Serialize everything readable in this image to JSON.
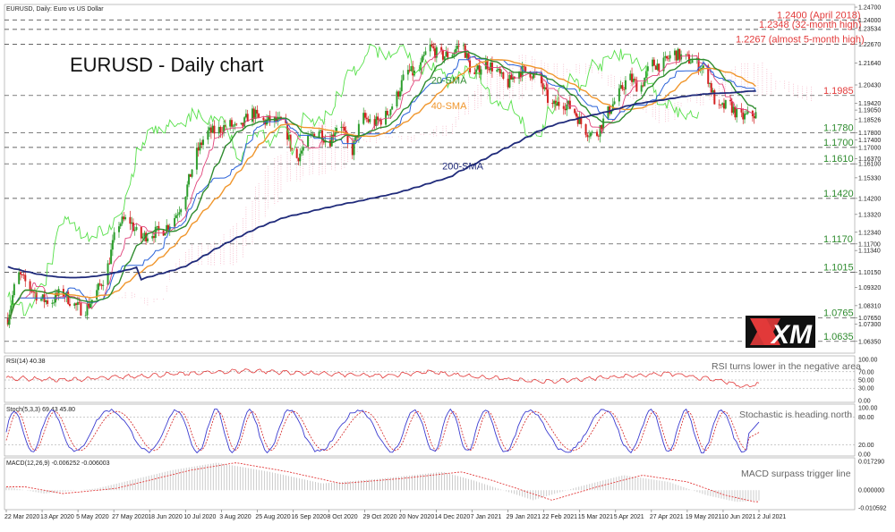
{
  "window_title": "EURUSD, Daily: Euro vs US Dollar",
  "chart_title": "EURUSD - Daily chart",
  "brand": "XM",
  "colors": {
    "up": "#2e9e2e",
    "down": "#d42222",
    "sma20": "#2f8c2f",
    "sma40": "#f0962c",
    "sma200": "#1f2a7a",
    "kijun": "#2a62d8",
    "tenkan": "#e0437a",
    "chikou": "#57e04a",
    "cloud": "#f08aa5",
    "level_green": "#2e8b2e",
    "level_red": "#e23a3a",
    "rsi": "#e23a3a",
    "stoch_main": "#3b3bd0",
    "stoch_signal": "#d42222",
    "macd_hist": "#bfbfbf",
    "macd_signal": "#e23a3a"
  },
  "chart_data": [
    {
      "type": "candlestick",
      "title": "EURUSD - Daily chart",
      "x_labels": [
        "22 Mar 2020",
        "13 Apr 2020",
        "5 May 2020",
        "27 May 2020",
        "18 Jun 2020",
        "10 Jul 2020",
        "3 Aug 2020",
        "25 Aug 2020",
        "16 Sep 2020",
        "8 Oct 2020",
        "29 Oct 2020",
        "20 Nov 2020",
        "14 Dec 2020",
        "7 Jan 2021",
        "29 Jan 2021",
        "22 Feb 2021",
        "15 Mar 2021",
        "5 Apr 2021",
        "27 Apr 2021",
        "19 May 2021",
        "10 Jun 2021",
        "2 Jul 2021"
      ],
      "y_ticks": [
        "1.24700",
        "1.24000",
        "1.23534",
        "1.22670",
        "1.21640",
        "1.20430",
        "1.19420",
        "1.19050",
        "1.18526",
        "1.17800",
        "1.17400",
        "1.17000",
        "1.16370",
        "1.16100",
        "1.15330",
        "1.14200",
        "1.13320",
        "1.12340",
        "1.11700",
        "1.11340",
        "1.10150",
        "1.09320",
        "1.08310",
        "1.07650",
        "1.07300",
        "1.06350"
      ],
      "ylim": [
        1.058,
        1.2475
      ],
      "levels": [
        {
          "value": 1.24,
          "label": "1.2400 (April 2018)",
          "color": "red"
        },
        {
          "value": 1.2348,
          "label": "1.2348 (32-month high)",
          "color": "red"
        },
        {
          "value": 1.2267,
          "label": "1.2267 (almost 5-month high)",
          "color": "red"
        },
        {
          "value": 1.1985,
          "label": "1.1985",
          "color": "red"
        },
        {
          "value": 1.178,
          "label": "1.1780",
          "color": "green"
        },
        {
          "value": 1.17,
          "label": "1.1700",
          "color": "green"
        },
        {
          "value": 1.161,
          "label": "1.1610",
          "color": "green"
        },
        {
          "value": 1.142,
          "label": "1.1420",
          "color": "green"
        },
        {
          "value": 1.117,
          "label": "1.1170",
          "color": "green"
        },
        {
          "value": 1.1015,
          "label": "1.1015",
          "color": "green"
        },
        {
          "value": 1.0765,
          "label": "1.0765",
          "color": "green"
        },
        {
          "value": 1.0635,
          "label": "1.0635",
          "color": "green"
        }
      ],
      "series_labels": [
        {
          "name": "20-SMA",
          "date": "2020-12-23",
          "value": 1.205
        },
        {
          "name": "40-SMA",
          "date": "2020-12-23",
          "value": 1.191
        },
        {
          "name": "200-SMA",
          "date": "2020-12-30",
          "value": 1.158
        }
      ],
      "close_series": {
        "description": "approximate daily closes, weekly anchor points",
        "points": [
          [
            "2020-03-22",
            1.072
          ],
          [
            "2020-03-29",
            1.101
          ],
          [
            "2020-04-05",
            1.094
          ],
          [
            "2020-04-12",
            1.087
          ],
          [
            "2020-04-19",
            1.085
          ],
          [
            "2020-04-26",
            1.091
          ],
          [
            "2020-05-03",
            1.084
          ],
          [
            "2020-05-10",
            1.08
          ],
          [
            "2020-05-17",
            1.089
          ],
          [
            "2020-05-24",
            1.101
          ],
          [
            "2020-05-31",
            1.128
          ],
          [
            "2020-06-07",
            1.131
          ],
          [
            "2020-06-14",
            1.12
          ],
          [
            "2020-06-21",
            1.123
          ],
          [
            "2020-06-28",
            1.124
          ],
          [
            "2020-07-05",
            1.13
          ],
          [
            "2020-07-12",
            1.142
          ],
          [
            "2020-07-19",
            1.165
          ],
          [
            "2020-07-26",
            1.178
          ],
          [
            "2020-08-02",
            1.179
          ],
          [
            "2020-08-09",
            1.183
          ],
          [
            "2020-08-16",
            1.179
          ],
          [
            "2020-08-23",
            1.19
          ],
          [
            "2020-08-30",
            1.184
          ],
          [
            "2020-09-06",
            1.185
          ],
          [
            "2020-09-13",
            1.183
          ],
          [
            "2020-09-20",
            1.163
          ],
          [
            "2020-09-27",
            1.172
          ],
          [
            "2020-10-04",
            1.181
          ],
          [
            "2020-10-11",
            1.172
          ],
          [
            "2020-10-18",
            1.186
          ],
          [
            "2020-10-25",
            1.165
          ],
          [
            "2020-11-01",
            1.187
          ],
          [
            "2020-11-08",
            1.183
          ],
          [
            "2020-11-15",
            1.186
          ],
          [
            "2020-11-22",
            1.196
          ],
          [
            "2020-11-29",
            1.212
          ],
          [
            "2020-12-06",
            1.21
          ],
          [
            "2020-12-13",
            1.226
          ],
          [
            "2020-12-20",
            1.22
          ],
          [
            "2020-12-27",
            1.221
          ],
          [
            "2021-01-03",
            1.228
          ],
          [
            "2021-01-10",
            1.208
          ],
          [
            "2021-01-17",
            1.217
          ],
          [
            "2021-01-24",
            1.213
          ],
          [
            "2021-01-31",
            1.204
          ],
          [
            "2021-02-07",
            1.212
          ],
          [
            "2021-02-14",
            1.212
          ],
          [
            "2021-02-21",
            1.207
          ],
          [
            "2021-02-28",
            1.192
          ],
          [
            "2021-03-07",
            1.195
          ],
          [
            "2021-03-14",
            1.191
          ],
          [
            "2021-03-21",
            1.18
          ],
          [
            "2021-03-28",
            1.176
          ],
          [
            "2021-04-04",
            1.188
          ],
          [
            "2021-04-11",
            1.198
          ],
          [
            "2021-04-18",
            1.209
          ],
          [
            "2021-04-25",
            1.202
          ],
          [
            "2021-05-02",
            1.216
          ],
          [
            "2021-05-09",
            1.215
          ],
          [
            "2021-05-16",
            1.222
          ],
          [
            "2021-05-23",
            1.219
          ],
          [
            "2021-05-30",
            1.217
          ],
          [
            "2021-06-06",
            1.211
          ],
          [
            "2021-06-13",
            1.19
          ],
          [
            "2021-06-20",
            1.194
          ],
          [
            "2021-06-27",
            1.186
          ],
          [
            "2021-07-04",
            1.188
          ]
        ]
      }
    },
    {
      "type": "line",
      "title": "RSI(14) 40.38",
      "annotation": "RSI turns lower in the negative area",
      "y_ticks": [
        "100.00",
        "70.00",
        "50.00",
        "30.00",
        "0.00"
      ],
      "ylim": [
        0,
        100
      ],
      "levels": [
        70,
        50,
        30
      ],
      "series": [
        {
          "points": [
            [
              0,
              55
            ],
            [
              0.08,
              50
            ],
            [
              0.2,
              62
            ],
            [
              0.32,
              73
            ],
            [
              0.38,
              68
            ],
            [
              0.5,
              60
            ],
            [
              0.56,
              70
            ],
            [
              0.62,
              58
            ],
            [
              0.72,
              46
            ],
            [
              0.8,
              57
            ],
            [
              0.88,
              66
            ],
            [
              0.95,
              48
            ],
            [
              0.98,
              34
            ],
            [
              1.0,
              40.38
            ]
          ]
        }
      ]
    },
    {
      "type": "line",
      "title": "Stoch(5,3,3) 69.43 45.80",
      "annotation": "Stochastic is heading north",
      "y_ticks": [
        "100.00",
        "80.00",
        "20.00",
        "0.00"
      ],
      "ylim": [
        0,
        100
      ],
      "levels": [
        80,
        20
      ],
      "last_values": {
        "main": 69.43,
        "signal": 45.8
      }
    },
    {
      "type": "bar",
      "title": "MACD(12,26,9) -0.006252 -0.006003",
      "annotation": "MACD surpass trigger line",
      "y_ticks": [
        "0.017290",
        "0.000000",
        "-0.010592"
      ],
      "ylim": [
        -0.010592,
        0.01729
      ],
      "last_values": {
        "macd": -0.006252,
        "signal": -0.006003
      },
      "macd_points": [
        [
          0,
          0.002
        ],
        [
          0.05,
          -0.002
        ],
        [
          0.12,
          0.001
        ],
        [
          0.22,
          0.012
        ],
        [
          0.28,
          0.0165
        ],
        [
          0.35,
          0.011
        ],
        [
          0.42,
          0.004
        ],
        [
          0.5,
          0.007
        ],
        [
          0.58,
          0.011
        ],
        [
          0.62,
          0.006
        ],
        [
          0.7,
          -0.006
        ],
        [
          0.76,
          0.002
        ],
        [
          0.82,
          0.009
        ],
        [
          0.88,
          0.005
        ],
        [
          0.93,
          -0.003
        ],
        [
          0.97,
          -0.007
        ],
        [
          1.0,
          -0.00625
        ]
      ]
    }
  ]
}
